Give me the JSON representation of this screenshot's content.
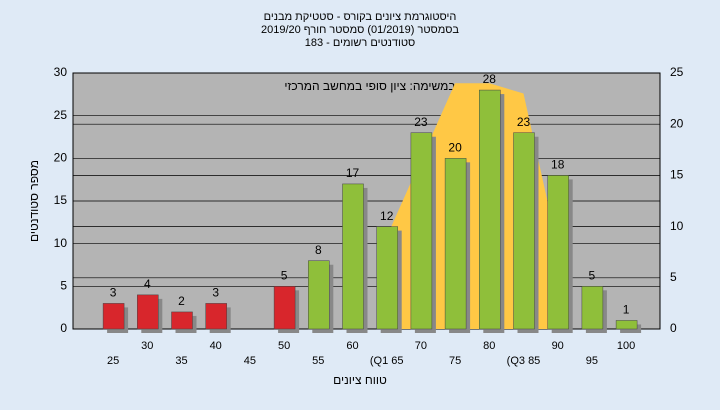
{
  "chart_data": {
    "type": "bar",
    "title": "היסטוגרמת ציונים בקורס - סטטיקת מבנים",
    "subtitle": [
      "בסמסטר  (01/2019)  סמסטר חורף 2019/20",
      "סטודנטים רשומים - 183"
    ],
    "annotation": "במשימה: ציון סופי במחשב המרכזי",
    "x_label": "טווח ציונים",
    "y_label": "מספר סטודנטים",
    "categories": [
      "25",
      "30",
      "35",
      "40",
      "45",
      "50",
      "55",
      "60",
      "(Q1 65",
      "70",
      "75",
      "80",
      "(Q3 85",
      "90",
      "95",
      "100"
    ],
    "values": [
      3,
      4,
      2,
      3,
      null,
      5,
      8,
      17,
      12,
      23,
      20,
      28,
      23,
      18,
      5,
      1
    ],
    "colors": [
      "#d8262c",
      "#d8262c",
      "#d8262c",
      "#d8262c",
      null,
      "#d8262c",
      "#8fbf3a",
      "#8fbf3a",
      "#8fbf3a",
      "#8fbf3a",
      "#8fbf3a",
      "#8fbf3a",
      "#8fbf3a",
      "#8fbf3a",
      "#8fbf3a",
      "#8fbf3a"
    ],
    "area": {
      "axis": "y2",
      "color": "#ffc845",
      "values": [
        null,
        null,
        null,
        null,
        null,
        null,
        null,
        null,
        9,
        16.5,
        24,
        24,
        23,
        8,
        null,
        null
      ]
    },
    "ylim": [
      0,
      30
    ],
    "yticks": [
      0,
      5,
      10,
      15,
      20,
      25,
      30
    ],
    "y2lim": [
      0,
      25
    ],
    "y2ticks": [
      0,
      5,
      10,
      15,
      20,
      25
    ],
    "grid": true
  }
}
